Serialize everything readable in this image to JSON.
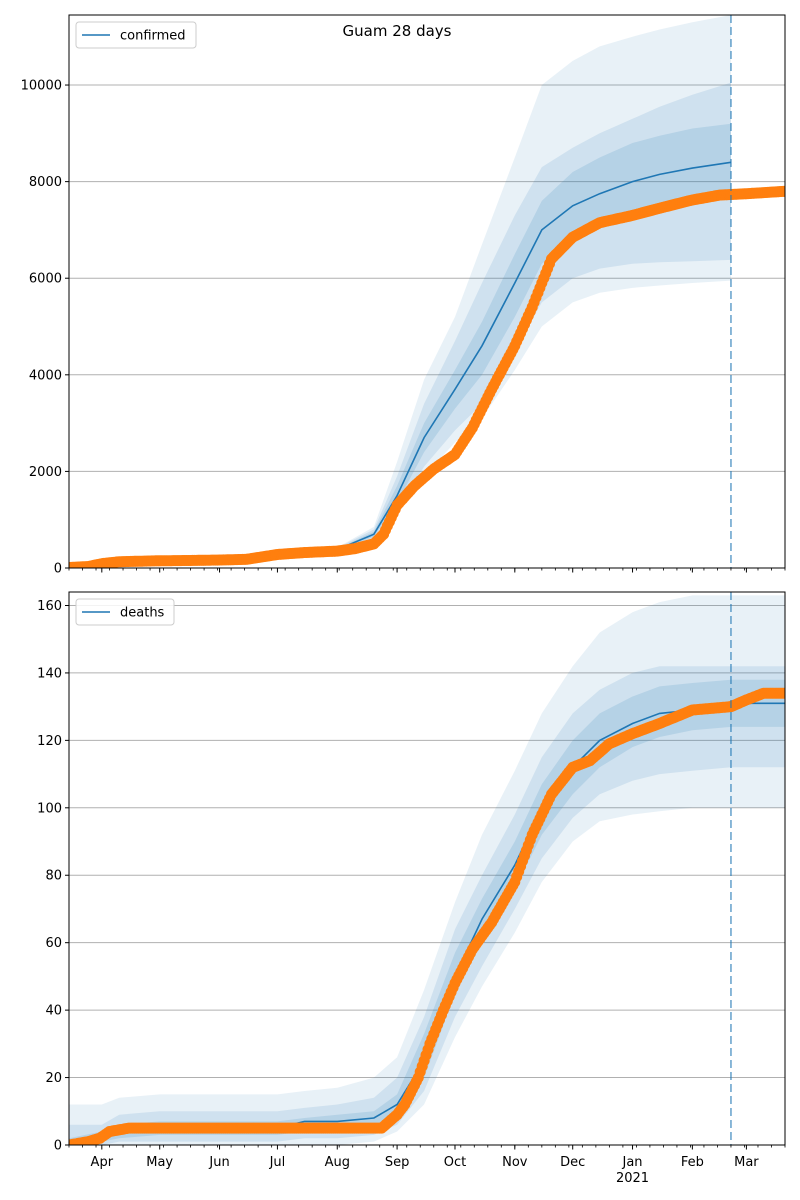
{
  "figure": {
    "title": "Guam 28 days"
  },
  "colors": {
    "line": "#1f77b4",
    "observed": "#ff7f0e",
    "band": "#1f77b4",
    "grid": "#b0b0b0",
    "forecast_marker": "#1f77b4"
  },
  "chart_data": [
    {
      "type": "line",
      "name_hint": "confirmed",
      "legend": {
        "labels": [
          "confirmed"
        ],
        "placement": "upper-left"
      },
      "title": "Guam 28 days",
      "xlabel": "",
      "ylabel": "",
      "x_start": "2020-03-15",
      "x_end": "2021-03-21",
      "forecast_date": "2021-02-21",
      "ylim": [
        0,
        11450
      ],
      "yticks": [
        0,
        2000,
        4000,
        6000,
        8000,
        10000
      ],
      "xticks": [
        {
          "date": "2020-04-01",
          "label": "Apr"
        },
        {
          "date": "2020-05-01",
          "label": "May"
        },
        {
          "date": "2020-06-01",
          "label": "Jun"
        },
        {
          "date": "2020-07-01",
          "label": "Jul"
        },
        {
          "date": "2020-08-01",
          "label": "Aug"
        },
        {
          "date": "2020-09-01",
          "label": "Sep"
        },
        {
          "date": "2020-10-01",
          "label": "Oct"
        },
        {
          "date": "2020-11-01",
          "label": "Nov"
        },
        {
          "date": "2020-12-01",
          "label": "Dec"
        },
        {
          "date": "2021-01-01",
          "label": "Jan"
        },
        {
          "date": "2021-02-01",
          "label": "Feb"
        },
        {
          "date": "2021-03-01",
          "label": "Mar"
        }
      ],
      "year_label": {
        "date": "2021-01-01",
        "label": "2021"
      },
      "grid": "y",
      "model": {
        "x": [
          "2020-03-15",
          "2020-04-01",
          "2020-05-01",
          "2020-06-01",
          "2020-07-01",
          "2020-08-01",
          "2020-08-20",
          "2020-09-01",
          "2020-09-15",
          "2020-10-01",
          "2020-10-15",
          "2020-11-01",
          "2020-11-15",
          "2020-12-01",
          "2020-12-15",
          "2021-01-01",
          "2021-01-15",
          "2021-02-01",
          "2021-02-21"
        ],
        "median": [
          0,
          100,
          150,
          170,
          270,
          380,
          700,
          1500,
          2700,
          3700,
          4600,
          5900,
          7000,
          7500,
          7750,
          8000,
          8150,
          8280,
          8400
        ],
        "q25": [
          0,
          90,
          135,
          160,
          250,
          360,
          650,
          1350,
          2400,
          3300,
          4000,
          5200,
          6300,
          6800,
          7100,
          7400,
          7550,
          7700,
          7800
        ],
        "q75": [
          0,
          110,
          165,
          180,
          290,
          400,
          750,
          1700,
          3000,
          4100,
          5100,
          6500,
          7600,
          8200,
          8500,
          8800,
          8950,
          9100,
          9200
        ],
        "q10": [
          0,
          80,
          125,
          150,
          235,
          345,
          600,
          1200,
          2100,
          2850,
          3400,
          4500,
          5500,
          6000,
          6200,
          6300,
          6330,
          6350,
          6380
        ],
        "q90": [
          0,
          120,
          175,
          190,
          305,
          415,
          800,
          1900,
          3400,
          4700,
          5900,
          7300,
          8300,
          8700,
          9000,
          9300,
          9550,
          9800,
          10050
        ],
        "q025": [
          0,
          75,
          120,
          145,
          225,
          340,
          570,
          1100,
          1900,
          2600,
          3100,
          4100,
          5000,
          5500,
          5700,
          5800,
          5850,
          5900,
          5950
        ],
        "q975": [
          0,
          130,
          185,
          200,
          320,
          425,
          850,
          2200,
          3900,
          5200,
          6700,
          8500,
          10000,
          10500,
          10800,
          11000,
          11150,
          11300,
          11450
        ]
      },
      "observed": {
        "x": [
          "2020-03-15",
          "2020-03-25",
          "2020-04-01",
          "2020-04-10",
          "2020-04-20",
          "2020-05-01",
          "2020-05-15",
          "2020-06-01",
          "2020-06-15",
          "2020-07-01",
          "2020-07-15",
          "2020-08-01",
          "2020-08-10",
          "2020-08-20",
          "2020-08-25",
          "2020-09-01",
          "2020-09-10",
          "2020-09-20",
          "2020-10-01",
          "2020-10-10",
          "2020-10-20",
          "2020-11-01",
          "2020-11-10",
          "2020-11-20",
          "2020-12-01",
          "2020-12-15",
          "2021-01-01",
          "2021-01-15",
          "2021-02-01",
          "2021-02-15",
          "2021-03-01",
          "2021-03-21"
        ],
        "y": [
          10,
          30,
          90,
          130,
          140,
          150,
          155,
          165,
          180,
          280,
          320,
          350,
          400,
          500,
          700,
          1300,
          1700,
          2050,
          2350,
          2900,
          3700,
          4600,
          5400,
          6400,
          6850,
          7150,
          7300,
          7450,
          7620,
          7720,
          7750,
          7800
        ]
      }
    },
    {
      "type": "line",
      "name_hint": "deaths",
      "legend": {
        "labels": [
          "deaths"
        ],
        "placement": "upper-left"
      },
      "xlabel": "",
      "ylabel": "",
      "x_start": "2020-03-15",
      "x_end": "2021-03-21",
      "forecast_date": "2021-02-21",
      "ylim": [
        0,
        164
      ],
      "yticks": [
        0,
        20,
        40,
        60,
        80,
        100,
        120,
        140,
        160
      ],
      "xticks": [
        {
          "date": "2020-04-01",
          "label": "Apr"
        },
        {
          "date": "2020-05-01",
          "label": "May"
        },
        {
          "date": "2020-06-01",
          "label": "Jun"
        },
        {
          "date": "2020-07-01",
          "label": "Jul"
        },
        {
          "date": "2020-08-01",
          "label": "Aug"
        },
        {
          "date": "2020-09-01",
          "label": "Sep"
        },
        {
          "date": "2020-10-01",
          "label": "Oct"
        },
        {
          "date": "2020-11-01",
          "label": "Nov"
        },
        {
          "date": "2020-12-01",
          "label": "Dec"
        },
        {
          "date": "2021-01-01",
          "label": "Jan"
        },
        {
          "date": "2021-02-01",
          "label": "Feb"
        },
        {
          "date": "2021-03-01",
          "label": "Mar"
        }
      ],
      "year_label": {
        "date": "2021-01-01",
        "label": "2021"
      },
      "grid": "y",
      "model": {
        "x": [
          "2020-03-15",
          "2020-04-01",
          "2020-04-10",
          "2020-05-01",
          "2020-06-01",
          "2020-07-01",
          "2020-07-15",
          "2020-08-01",
          "2020-08-20",
          "2020-09-01",
          "2020-09-15",
          "2020-10-01",
          "2020-10-15",
          "2020-11-01",
          "2020-11-15",
          "2020-12-01",
          "2020-12-15",
          "2021-01-01",
          "2021-01-15",
          "2021-02-01",
          "2021-02-21",
          "2021-03-21"
        ],
        "median": [
          0,
          2,
          4,
          5,
          5,
          5,
          7,
          7,
          8,
          12,
          25,
          50,
          67,
          83,
          100,
          112,
          120,
          125,
          128,
          129,
          131,
          131
        ],
        "q25": [
          1,
          1,
          2,
          3,
          3,
          3,
          4,
          4,
          5,
          8,
          20,
          45,
          60,
          76,
          92,
          104,
          112,
          118,
          121,
          123,
          124,
          124
        ],
        "q75": [
          2,
          4,
          6,
          7,
          7,
          7,
          8,
          9,
          10,
          15,
          33,
          57,
          73,
          90,
          107,
          120,
          128,
          133,
          136,
          137,
          138,
          138
        ],
        "q10": [
          0,
          0,
          1,
          1,
          1,
          1,
          2,
          2,
          3,
          6,
          16,
          38,
          53,
          70,
          85,
          97,
          104,
          108,
          110,
          111,
          112,
          112
        ],
        "q90": [
          6,
          6,
          9,
          10,
          10,
          10,
          11,
          12,
          14,
          20,
          38,
          64,
          80,
          98,
          115,
          128,
          135,
          140,
          142,
          142,
          142,
          142
        ],
        "q025": [
          0,
          0,
          0,
          0,
          0,
          0,
          0,
          0,
          1,
          4,
          12,
          32,
          47,
          63,
          78,
          90,
          96,
          98,
          99,
          100,
          100,
          100
        ],
        "q975": [
          12,
          12,
          14,
          15,
          15,
          15,
          16,
          17,
          20,
          26,
          46,
          72,
          92,
          111,
          128,
          142,
          152,
          158,
          161,
          163,
          163,
          163
        ]
      },
      "observed": {
        "x": [
          "2020-03-15",
          "2020-03-25",
          "2020-03-31",
          "2020-04-05",
          "2020-04-15",
          "2020-05-15",
          "2020-06-15",
          "2020-07-15",
          "2020-08-15",
          "2020-08-24",
          "2020-09-01",
          "2020-09-05",
          "2020-09-12",
          "2020-09-18",
          "2020-09-25",
          "2020-10-01",
          "2020-10-10",
          "2020-10-20",
          "2020-11-01",
          "2020-11-10",
          "2020-11-20",
          "2020-12-01",
          "2020-12-10",
          "2020-12-20",
          "2021-01-01",
          "2021-01-15",
          "2021-02-01",
          "2021-02-21",
          "2021-03-01",
          "2021-03-10",
          "2021-03-21"
        ],
        "y": [
          0,
          1,
          2,
          4,
          5,
          5,
          5,
          5,
          5,
          5,
          9,
          12,
          20,
          30,
          40,
          48,
          58,
          66,
          78,
          92,
          104,
          112,
          114,
          119,
          122,
          125,
          129,
          130,
          132,
          134,
          134
        ]
      }
    }
  ]
}
